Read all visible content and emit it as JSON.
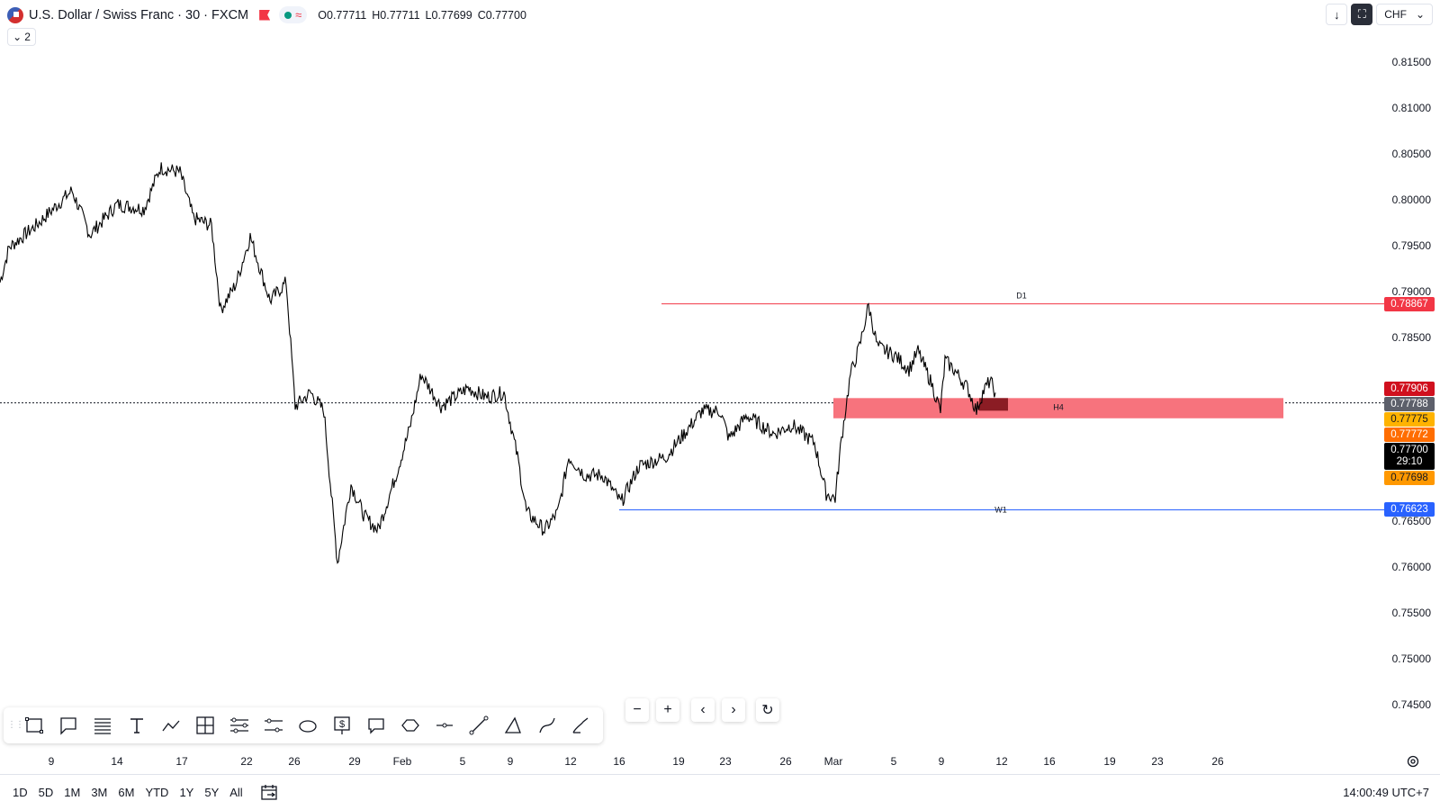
{
  "header": {
    "symbol_title": "U.S. Dollar / Swiss Franc · 30 · FXCM",
    "approx_symbol": "≈",
    "ohlc": {
      "open": "O0.77711",
      "high": "H0.77711",
      "low": "L0.77699",
      "close": "C0.77700"
    },
    "indicator_count": "2",
    "currency": "CHF"
  },
  "chart_data": {
    "type": "line",
    "price_axis": [
      "0.81500",
      "0.81000",
      "0.80500",
      "0.80000",
      "0.79500",
      "0.79000",
      "0.78500",
      "0.76500",
      "0.76000",
      "0.75500",
      "0.75000",
      "0.74500"
    ],
    "time_axis": [
      "9",
      "14",
      "17",
      "22",
      "26",
      "29",
      "Feb",
      "5",
      "9",
      "12",
      "16",
      "19",
      "23",
      "26",
      "Mar",
      "5",
      "9",
      "12",
      "16",
      "19",
      "23",
      "26"
    ],
    "ylim": [
      0.744,
      0.818
    ],
    "levels": [
      {
        "label": "D1",
        "price": 0.78867,
        "tag": "0.78867",
        "color": "#f23645"
      },
      {
        "label": "W1",
        "price": 0.76623,
        "tag": "0.76623",
        "color": "#2962ff"
      }
    ],
    "zone": {
      "label": "H4",
      "top": 0.7784,
      "bottom": 0.7762,
      "color": "#f7737d"
    },
    "price_tags": [
      {
        "value": "0.77906",
        "color": "#d0101e"
      },
      {
        "value": "0.77788",
        "color": "#5d606b"
      },
      {
        "value": "0.77775",
        "color": "#ffb300"
      },
      {
        "value": "0.77772",
        "color": "#ff6d00"
      },
      {
        "value": "0.77700",
        "countdown": "29:10",
        "color": "#000000"
      },
      {
        "value": "0.77698",
        "color": "#ff9800"
      }
    ],
    "last_price": 0.777
  },
  "toolbar": {
    "tools": [
      "rectangle-icon",
      "callout-icon",
      "fib-icon",
      "text-icon",
      "path-icon",
      "crosshair-icon",
      "parallel-channel-icon",
      "regression-icon",
      "ellipse-icon",
      "price-note-icon",
      "comment-icon",
      "polygon-icon",
      "horizontal-line-icon",
      "trend-line-icon",
      "triangle-icon",
      "curve-icon",
      "brush-icon"
    ]
  },
  "nav": {
    "zoom_out": "−",
    "zoom_in": "+",
    "scroll_left": "‹",
    "scroll_right": "›",
    "reset": "↻"
  },
  "bottom": {
    "ranges": [
      "1D",
      "5D",
      "1M",
      "3M",
      "6M",
      "YTD",
      "1Y",
      "5Y",
      "All"
    ],
    "clock": "14:00:49 UTC+7"
  }
}
